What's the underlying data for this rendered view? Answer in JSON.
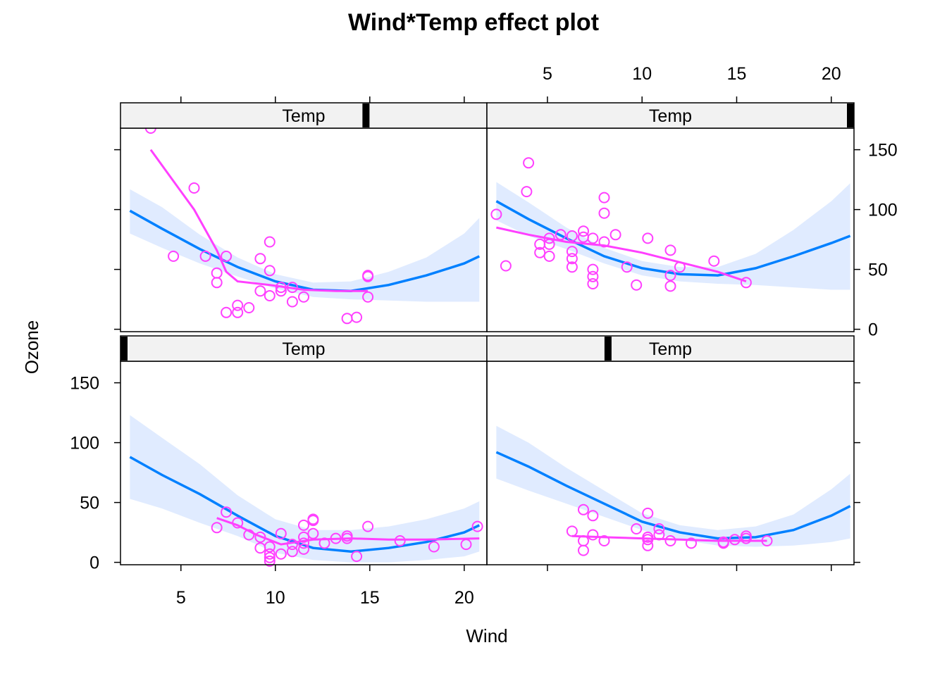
{
  "chart_data": {
    "type": "scatter",
    "title": "Wind*Temp effect plot",
    "xlabel": "Wind",
    "ylabel": "Ozone",
    "xlim": [
      1.8,
      21.2
    ],
    "ylim": [
      -2,
      168
    ],
    "x_ticks": [
      5,
      10,
      15,
      20
    ],
    "y_ticks": [
      0,
      50,
      100,
      150
    ],
    "grid": false,
    "colors": {
      "fit": "#0080ff",
      "band": "#e0ebff",
      "points": "#ff40ff",
      "strip": "#f2f2f2",
      "indicator": "#000000"
    },
    "panels": [
      {
        "id": "bottom-left",
        "strip": "Temp",
        "temp_fraction": 0.0,
        "fit": [
          [
            2.3,
            88
          ],
          [
            4,
            73
          ],
          [
            6,
            57
          ],
          [
            8,
            39
          ],
          [
            10,
            22
          ],
          [
            12,
            12
          ],
          [
            14,
            9
          ],
          [
            16,
            12
          ],
          [
            18,
            17
          ],
          [
            20,
            25
          ],
          [
            20.8,
            31
          ]
        ],
        "band_upper": [
          [
            2.3,
            123
          ],
          [
            4,
            104
          ],
          [
            6,
            82
          ],
          [
            8,
            56
          ],
          [
            10,
            36
          ],
          [
            12,
            27
          ],
          [
            14,
            27
          ],
          [
            16,
            30
          ],
          [
            18,
            36
          ],
          [
            20,
            45
          ],
          [
            20.8,
            51
          ]
        ],
        "band_lower": [
          [
            2.3,
            53
          ],
          [
            4,
            45
          ],
          [
            6,
            33
          ],
          [
            8,
            22
          ],
          [
            10,
            8
          ],
          [
            12,
            2
          ],
          [
            14,
            0
          ],
          [
            16,
            0
          ],
          [
            18,
            2
          ],
          [
            20,
            5
          ],
          [
            20.8,
            9
          ]
        ],
        "smooth": [
          [
            6.9,
            37
          ],
          [
            8,
            31
          ],
          [
            9,
            23
          ],
          [
            10.3,
            15
          ],
          [
            12,
            19
          ],
          [
            14,
            20
          ],
          [
            16,
            19
          ],
          [
            18,
            19
          ],
          [
            20.8,
            20
          ]
        ],
        "points": [
          [
            6.9,
            29
          ],
          [
            7.4,
            42
          ],
          [
            8,
            33
          ],
          [
            8.6,
            23
          ],
          [
            9.2,
            21
          ],
          [
            9.2,
            12
          ],
          [
            9.7,
            13
          ],
          [
            9.7,
            7
          ],
          [
            9.7,
            4
          ],
          [
            9.7,
            1
          ],
          [
            10.3,
            24
          ],
          [
            10.3,
            7
          ],
          [
            10.9,
            15
          ],
          [
            10.9,
            9
          ],
          [
            11.5,
            31
          ],
          [
            11.5,
            21
          ],
          [
            11.5,
            16
          ],
          [
            11.5,
            11
          ],
          [
            12,
            35
          ],
          [
            12,
            36
          ],
          [
            12,
            24
          ],
          [
            12.6,
            16
          ],
          [
            13.2,
            20
          ],
          [
            13.8,
            20
          ],
          [
            13.8,
            22
          ],
          [
            14.3,
            5
          ],
          [
            14.9,
            30
          ],
          [
            16.6,
            18
          ],
          [
            18.4,
            13
          ],
          [
            20.1,
            15
          ],
          [
            20.7,
            30
          ]
        ]
      },
      {
        "id": "bottom-right",
        "strip": "Temp",
        "temp_fraction": 0.33,
        "fit": [
          [
            2.3,
            92
          ],
          [
            4,
            80
          ],
          [
            6,
            64
          ],
          [
            8,
            49
          ],
          [
            10,
            34
          ],
          [
            12,
            25
          ],
          [
            14,
            20
          ],
          [
            16,
            21
          ],
          [
            18,
            27
          ],
          [
            20,
            39
          ],
          [
            21,
            47
          ]
        ],
        "band_upper": [
          [
            2.3,
            114
          ],
          [
            4,
            100
          ],
          [
            6,
            79
          ],
          [
            8,
            60
          ],
          [
            10,
            41
          ],
          [
            12,
            31
          ],
          [
            14,
            27
          ],
          [
            16,
            30
          ],
          [
            18,
            40
          ],
          [
            20,
            61
          ],
          [
            21,
            74
          ]
        ],
        "band_lower": [
          [
            2.3,
            70
          ],
          [
            4,
            60
          ],
          [
            6,
            49
          ],
          [
            8,
            38
          ],
          [
            10,
            27
          ],
          [
            12,
            19
          ],
          [
            14,
            14
          ],
          [
            16,
            13
          ],
          [
            18,
            14
          ],
          [
            20,
            17
          ],
          [
            21,
            20
          ]
        ],
        "smooth": [
          [
            6.3,
            22
          ],
          [
            8,
            21
          ],
          [
            10,
            20
          ],
          [
            12,
            19
          ],
          [
            14,
            18
          ],
          [
            16,
            18
          ],
          [
            16.6,
            18
          ]
        ],
        "points": [
          [
            6.3,
            26
          ],
          [
            6.9,
            18
          ],
          [
            6.9,
            10
          ],
          [
            6.9,
            44
          ],
          [
            7.4,
            39
          ],
          [
            7.4,
            23
          ],
          [
            8,
            18
          ],
          [
            9.7,
            28
          ],
          [
            10.3,
            41
          ],
          [
            10.3,
            21
          ],
          [
            10.3,
            19
          ],
          [
            10.3,
            14
          ],
          [
            10.9,
            28
          ],
          [
            10.9,
            23
          ],
          [
            11.5,
            18
          ],
          [
            12.6,
            16
          ],
          [
            14.3,
            17
          ],
          [
            14.3,
            16
          ],
          [
            14.9,
            19
          ],
          [
            15.5,
            20
          ],
          [
            15.5,
            22
          ],
          [
            16.6,
            18
          ]
        ]
      },
      {
        "id": "top-left",
        "strip": "Temp",
        "temp_fraction": 0.67,
        "fit": [
          [
            2.3,
            99
          ],
          [
            4,
            84
          ],
          [
            6,
            67
          ],
          [
            8,
            52
          ],
          [
            10,
            40
          ],
          [
            12,
            33
          ],
          [
            14,
            32
          ],
          [
            16,
            37
          ],
          [
            18,
            45
          ],
          [
            20,
            55
          ],
          [
            20.8,
            61
          ]
        ],
        "band_upper": [
          [
            2.3,
            117
          ],
          [
            4,
            102
          ],
          [
            6,
            79
          ],
          [
            8,
            60
          ],
          [
            10,
            46
          ],
          [
            12,
            39
          ],
          [
            14,
            40
          ],
          [
            16,
            48
          ],
          [
            18,
            60
          ],
          [
            20,
            80
          ],
          [
            20.8,
            93
          ]
        ],
        "band_lower": [
          [
            2.3,
            80
          ],
          [
            4,
            68
          ],
          [
            6,
            55
          ],
          [
            8,
            44
          ],
          [
            10,
            34
          ],
          [
            12,
            27
          ],
          [
            14,
            25
          ],
          [
            16,
            24
          ],
          [
            18,
            23
          ],
          [
            20,
            23
          ],
          [
            20.8,
            23
          ]
        ],
        "smooth": [
          [
            3.4,
            150
          ],
          [
            4.5,
            126
          ],
          [
            5.7,
            100
          ],
          [
            6.9,
            66
          ],
          [
            7.4,
            48
          ],
          [
            8,
            40
          ],
          [
            9.7,
            37
          ],
          [
            11.5,
            33
          ],
          [
            13.2,
            32
          ],
          [
            14.9,
            32
          ]
        ],
        "points": [
          [
            3.4,
            168
          ],
          [
            4.6,
            61
          ],
          [
            5.7,
            118
          ],
          [
            6.3,
            61
          ],
          [
            6.9,
            47
          ],
          [
            6.9,
            39
          ],
          [
            7.4,
            61
          ],
          [
            7.4,
            14
          ],
          [
            8,
            20
          ],
          [
            8,
            14
          ],
          [
            8.6,
            18
          ],
          [
            9.2,
            59
          ],
          [
            9.2,
            32
          ],
          [
            9.7,
            73
          ],
          [
            9.7,
            49
          ],
          [
            9.7,
            28
          ],
          [
            10.3,
            35
          ],
          [
            10.3,
            32
          ],
          [
            10.9,
            35
          ],
          [
            10.9,
            23
          ],
          [
            11.5,
            27
          ],
          [
            13.8,
            9
          ],
          [
            14.3,
            10
          ],
          [
            14.9,
            44
          ],
          [
            14.9,
            45
          ],
          [
            14.9,
            27
          ]
        ]
      },
      {
        "id": "top-right",
        "strip": "Temp",
        "temp_fraction": 1.0,
        "fit": [
          [
            2.3,
            107
          ],
          [
            4,
            92
          ],
          [
            6,
            76
          ],
          [
            8,
            61
          ],
          [
            10,
            51
          ],
          [
            12,
            46
          ],
          [
            14,
            45
          ],
          [
            16,
            51
          ],
          [
            18,
            61
          ],
          [
            20,
            72
          ],
          [
            21,
            78
          ]
        ],
        "band_upper": [
          [
            2.3,
            123
          ],
          [
            4,
            106
          ],
          [
            6,
            85
          ],
          [
            8,
            68
          ],
          [
            10,
            57
          ],
          [
            12,
            52
          ],
          [
            14,
            52
          ],
          [
            16,
            63
          ],
          [
            18,
            83
          ],
          [
            20,
            107
          ],
          [
            21,
            122
          ]
        ],
        "band_lower": [
          [
            2.3,
            91
          ],
          [
            4,
            78
          ],
          [
            6,
            67
          ],
          [
            8,
            55
          ],
          [
            10,
            45
          ],
          [
            12,
            40
          ],
          [
            14,
            38
          ],
          [
            16,
            37
          ],
          [
            18,
            35
          ],
          [
            20,
            33
          ],
          [
            21,
            33
          ]
        ],
        "smooth": [
          [
            2.3,
            85
          ],
          [
            4,
            79
          ],
          [
            6,
            73
          ],
          [
            8,
            70
          ],
          [
            10,
            64
          ],
          [
            12,
            56
          ],
          [
            14,
            48
          ],
          [
            15.5,
            40
          ]
        ],
        "points": [
          [
            2.3,
            96
          ],
          [
            2.8,
            53
          ],
          [
            3.9,
            115
          ],
          [
            4,
            139
          ],
          [
            4.6,
            64
          ],
          [
            4.6,
            71
          ],
          [
            5.1,
            76
          ],
          [
            5.1,
            71
          ],
          [
            5.1,
            61
          ],
          [
            5.7,
            79
          ],
          [
            6.3,
            78
          ],
          [
            6.3,
            65
          ],
          [
            6.3,
            59
          ],
          [
            6.3,
            52
          ],
          [
            6.9,
            82
          ],
          [
            6.9,
            77
          ],
          [
            7.4,
            76
          ],
          [
            7.4,
            50
          ],
          [
            7.4,
            44
          ],
          [
            7.4,
            38
          ],
          [
            8,
            110
          ],
          [
            8,
            97
          ],
          [
            8,
            73
          ],
          [
            8.6,
            79
          ],
          [
            9.2,
            52
          ],
          [
            9.7,
            37
          ],
          [
            10.3,
            76
          ],
          [
            11.5,
            66
          ],
          [
            11.5,
            45
          ],
          [
            11.5,
            36
          ],
          [
            12,
            52
          ],
          [
            13.8,
            57
          ],
          [
            15.5,
            39
          ]
        ]
      }
    ]
  }
}
